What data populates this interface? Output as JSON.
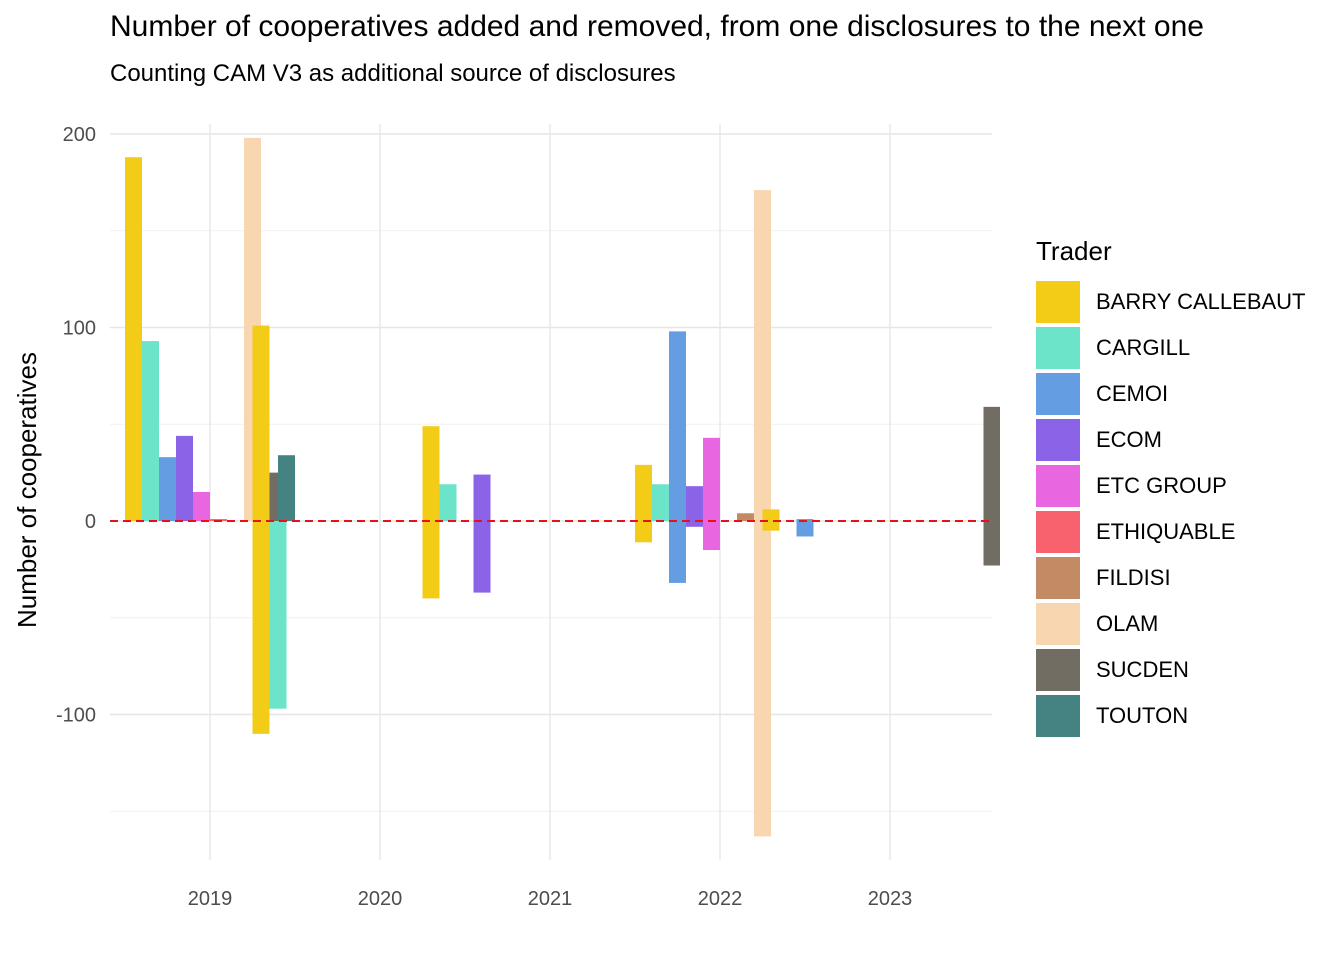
{
  "chart_data": {
    "type": "bar",
    "title": "Number of cooperatives added and removed, from one disclosures to the next one",
    "subtitle": "Counting CAM V3 as additional source of disclosures",
    "xlabel": "",
    "ylabel": "Number of cooperatives",
    "ylim": [
      -180,
      220
    ],
    "yticks": [
      -100,
      0,
      100,
      200
    ],
    "xlim": [
      2018.55,
      2023.6
    ],
    "xticks": [
      2019,
      2020,
      2021,
      2022,
      2023
    ],
    "grid": true,
    "zero_line": 0,
    "legend_title": "Trader",
    "legend_position": "right",
    "series": [
      {
        "name": "BARRY CALLEBAUT",
        "color": "#F2CC17"
      },
      {
        "name": "CARGILL",
        "color": "#6CE4C9"
      },
      {
        "name": "CEMOI",
        "color": "#659DE3"
      },
      {
        "name": "ECOM",
        "color": "#8B63E6"
      },
      {
        "name": "ETC GROUP",
        "color": "#E866E0"
      },
      {
        "name": "ETHIQUABLE",
        "color": "#F8626F"
      },
      {
        "name": "FILDISI",
        "color": "#C28B63"
      },
      {
        "name": "OLAM",
        "color": "#F8D7B0"
      },
      {
        "name": "SUCDEN",
        "color": "#726D62"
      },
      {
        "name": "TOUTON",
        "color": "#458282"
      }
    ],
    "groups": [
      {
        "x": 2019.0,
        "bars": [
          {
            "series": "BARRY CALLEBAUT",
            "added": 188,
            "removed": 0
          },
          {
            "series": "CARGILL",
            "added": 93,
            "removed": 0
          },
          {
            "series": "CEMOI",
            "added": 33,
            "removed": 0
          },
          {
            "series": "ECOM",
            "added": 44,
            "removed": 0
          },
          {
            "series": "ETC GROUP",
            "added": 15,
            "removed": 0
          },
          {
            "series": "ETHIQUABLE",
            "added": 1,
            "removed": 0
          },
          {
            "series": "OLAM",
            "added": 198,
            "removed": 0
          },
          {
            "series": "SUCDEN",
            "added": 25,
            "removed": 0
          },
          {
            "series": "TOUTON",
            "added": 34,
            "removed": 0
          }
        ]
      },
      {
        "x": 2019.75,
        "bars": [
          {
            "series": "BARRY CALLEBAUT",
            "added": 101,
            "removed": -110
          },
          {
            "series": "CARGILL",
            "added": 0,
            "removed": -97
          }
        ]
      },
      {
        "x": 2020.75,
        "bars": [
          {
            "series": "BARRY CALLEBAUT",
            "added": 49,
            "removed": -40
          },
          {
            "series": "CARGILL",
            "added": 19,
            "removed": 0
          },
          {
            "series": "ECOM",
            "added": 24,
            "removed": -37
          }
        ]
      },
      {
        "x": 2022.0,
        "bars": [
          {
            "series": "BARRY CALLEBAUT",
            "added": 29,
            "removed": -11
          },
          {
            "series": "CARGILL",
            "added": 19,
            "removed": 0
          },
          {
            "series": "CEMOI",
            "added": 98,
            "removed": -32
          },
          {
            "series": "ECOM",
            "added": 18,
            "removed": -3
          },
          {
            "series": "ETC GROUP",
            "added": 43,
            "removed": -15
          },
          {
            "series": "FILDISI",
            "added": 4,
            "removed": 0
          },
          {
            "series": "OLAM",
            "added": 171,
            "removed": -163
          }
        ]
      },
      {
        "x": 2022.75,
        "bars": [
          {
            "series": "BARRY CALLEBAUT",
            "added": 6,
            "removed": -5
          },
          {
            "series": "CEMOI",
            "added": 1,
            "removed": -8
          }
        ]
      },
      {
        "x": 2023.25,
        "bars": [
          {
            "series": "SUCDEN",
            "added": 59,
            "removed": -23
          }
        ]
      }
    ]
  }
}
